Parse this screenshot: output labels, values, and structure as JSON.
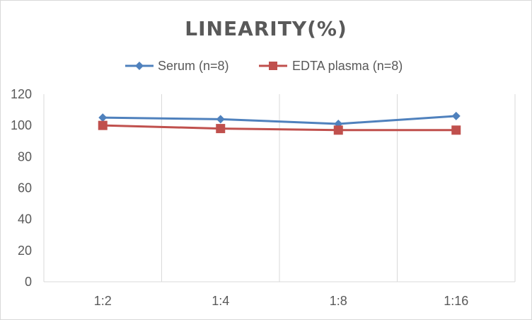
{
  "chart_data": {
    "type": "line",
    "title": "LINEARITY(%)",
    "xlabel": "",
    "ylabel": "",
    "categories": [
      "1:2",
      "1:4",
      "1:8",
      "1:16"
    ],
    "ylim": [
      0,
      120
    ],
    "yticks": [
      0,
      20,
      40,
      60,
      80,
      100,
      120
    ],
    "grid": "vertical",
    "legend_position": "top",
    "series": [
      {
        "name": "Serum (n=8)",
        "values": [
          105,
          104,
          101,
          106
        ],
        "color": "#4f81bd",
        "marker": "diamond"
      },
      {
        "name": "EDTA plasma (n=8)",
        "values": [
          100,
          98,
          97,
          97
        ],
        "color": "#c0504d",
        "marker": "square"
      }
    ]
  }
}
